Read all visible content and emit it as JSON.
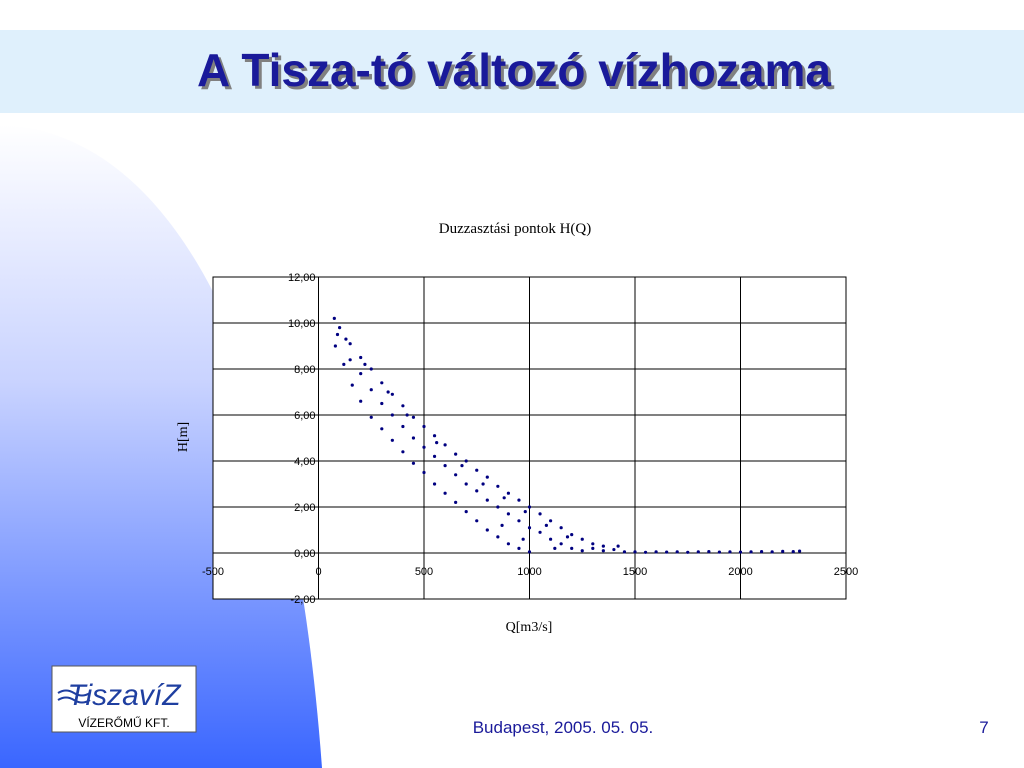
{
  "header": {
    "title": "A Tisza-tó változó vízhozama"
  },
  "chart_data": {
    "type": "scatter",
    "title": "Duzzasztási pontok H(Q)",
    "x_label": "Q[m3/s]",
    "y_label": "H[m]",
    "color": "#000080",
    "grid": true,
    "xlim": [
      -500,
      2500
    ],
    "xticks": [
      -500,
      0,
      500,
      1000,
      1500,
      2000,
      2500
    ],
    "ylim": [
      -2,
      12
    ],
    "yticks": [
      {
        "value": -2,
        "label": "-2,00"
      },
      {
        "value": 0,
        "label": "0,00"
      },
      {
        "value": 2,
        "label": "2,00"
      },
      {
        "value": 4,
        "label": "4,00"
      },
      {
        "value": 6,
        "label": "6,00"
      },
      {
        "value": 8,
        "label": "8,00"
      },
      {
        "value": 10,
        "label": "10,00"
      },
      {
        "value": 12,
        "label": "12,00"
      }
    ],
    "x": [
      75,
      100,
      150,
      200,
      250,
      300,
      350,
      400,
      450,
      500,
      550,
      600,
      650,
      700,
      750,
      800,
      850,
      900,
      950,
      1000,
      1050,
      1100,
      1150,
      1200,
      1250,
      1300,
      1350,
      1400,
      1450,
      90,
      150,
      200,
      250,
      300,
      350,
      400,
      450,
      500,
      550,
      600,
      650,
      700,
      750,
      800,
      850,
      900,
      950,
      1000,
      1050,
      1100,
      1150,
      1200,
      1250,
      80,
      120,
      160,
      200,
      250,
      300,
      350,
      400,
      450,
      500,
      550,
      600,
      650,
      700,
      750,
      800,
      850,
      900,
      950,
      1000,
      1500,
      1550,
      1600,
      1650,
      1700,
      1750,
      1800,
      1850,
      1900,
      1950,
      2000,
      2050,
      2100,
      2150,
      2200,
      2250,
      2280,
      130,
      220,
      330,
      420,
      560,
      680,
      780,
      880,
      980,
      1080,
      1180,
      1300,
      1350,
      1420,
      1120,
      970,
      870
    ],
    "y": [
      10.2,
      9.8,
      9.1,
      8.5,
      8.0,
      7.4,
      6.9,
      6.4,
      5.9,
      5.5,
      5.1,
      4.7,
      4.3,
      4.0,
      3.6,
      3.3,
      2.9,
      2.6,
      2.3,
      2.0,
      1.7,
      1.4,
      1.1,
      0.8,
      0.6,
      0.4,
      0.3,
      0.15,
      0.05,
      9.5,
      8.4,
      7.8,
      7.1,
      6.5,
      6.0,
      5.5,
      5.0,
      4.6,
      4.2,
      3.8,
      3.4,
      3.0,
      2.7,
      2.3,
      2.0,
      1.7,
      1.4,
      1.1,
      0.9,
      0.6,
      0.4,
      0.2,
      0.1,
      9.0,
      8.2,
      7.3,
      6.6,
      5.9,
      5.4,
      4.9,
      4.4,
      3.9,
      3.5,
      3.0,
      2.6,
      2.2,
      1.8,
      1.4,
      1.0,
      0.7,
      0.4,
      0.2,
      0.05,
      0.05,
      0.03,
      0.05,
      0.04,
      0.05,
      0.03,
      0.05,
      0.06,
      0.04,
      0.05,
      0.04,
      0.05,
      0.06,
      0.05,
      0.07,
      0.06,
      0.08,
      9.3,
      8.2,
      7.0,
      6.0,
      4.8,
      3.8,
      3.0,
      2.4,
      1.8,
      1.2,
      0.7,
      0.2,
      0.1,
      0.3,
      0.2,
      0.6,
      1.2
    ]
  },
  "footer": {
    "date": "Budapest, 2005. 05. 05.",
    "page_number": 7
  },
  "logo": {
    "name": "TiszavíZ",
    "subtitle": "VÍZERŐMŰ KFT."
  }
}
